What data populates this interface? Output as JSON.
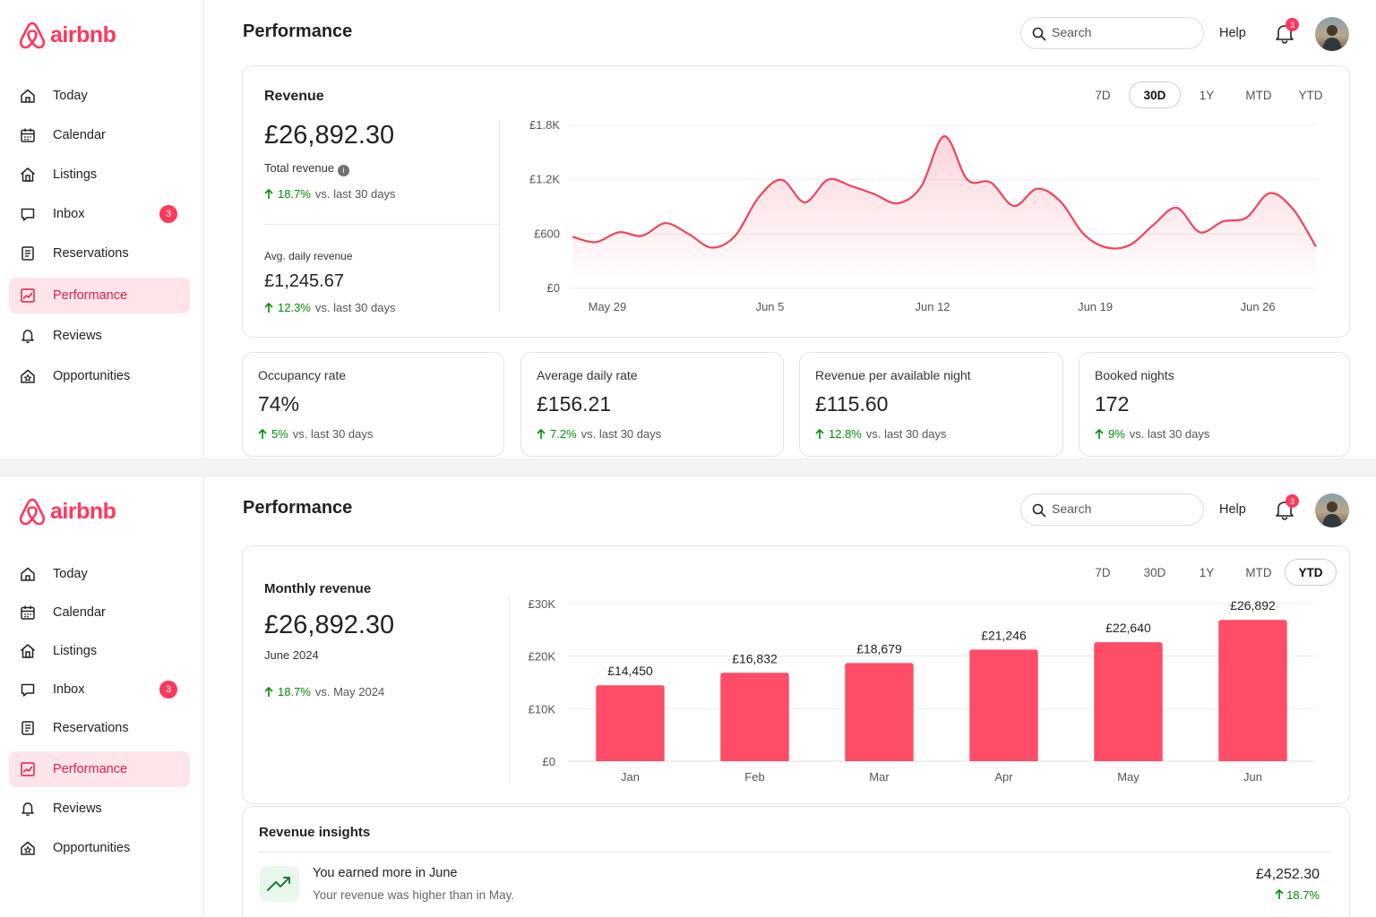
{
  "brand": {
    "name": "airbnb",
    "color": "#FF385C"
  },
  "sidebar": {
    "items": [
      {
        "label": "Today",
        "icon": "home-icon"
      },
      {
        "label": "Calendar",
        "icon": "calendar-icon"
      },
      {
        "label": "Listings",
        "icon": "listings-icon"
      },
      {
        "label": "Inbox",
        "icon": "inbox-icon",
        "badge": "3"
      },
      {
        "label": "Reservations",
        "icon": "reservations-icon"
      },
      {
        "label": "Performance",
        "icon": "performance-icon",
        "active": true
      },
      {
        "label": "Reviews",
        "icon": "reviews-icon"
      },
      {
        "label": "Opportunities",
        "icon": "opportunities-icon"
      }
    ]
  },
  "header": {
    "title": "Performance",
    "search_placeholder": "Search",
    "help_label": "Help",
    "notification_count": "3"
  },
  "range_tabs": [
    "7D",
    "30D",
    "1Y",
    "MTD",
    "YTD"
  ],
  "revenue_view": {
    "active_tab": "30D",
    "card_title": "Revenue",
    "total_value": "£26,892.30",
    "total_label": "Total revenue",
    "total_pct": "18.7%",
    "total_compare": "vs. last 30 days",
    "avg_label": "Avg. daily revenue",
    "avg_value": "£1,245.67",
    "avg_pct": "12.3%",
    "avg_compare": "vs. last 30 days",
    "metrics": [
      {
        "label": "Occupancy rate",
        "value": "74%",
        "pct": "5%",
        "compare": "vs. last 30 days"
      },
      {
        "label": "Average daily rate",
        "value": "£156.21",
        "pct": "7.2%",
        "compare": "vs. last 30 days"
      },
      {
        "label": "Revenue per available night",
        "value": "£115.60",
        "pct": "12.8%",
        "compare": "vs. last 30 days"
      },
      {
        "label": "Booked nights",
        "value": "172",
        "pct": "9%",
        "compare": "vs. last 30 days"
      }
    ]
  },
  "monthly_view": {
    "active_tab": "YTD",
    "card_title": "Monthly revenue",
    "value": "£26,892.30",
    "period": "June 2024",
    "pct": "18.7%",
    "compare": "vs. May 2024",
    "insights_title": "Revenue insights",
    "insight": {
      "title": "You earned more in June",
      "subtitle": "Your revenue was higher than in May.",
      "amount": "£4,252.30",
      "pct": "18.7%"
    }
  },
  "chart_data": [
    {
      "type": "area",
      "title": "",
      "xlabel": "",
      "ylabel": "",
      "ylim": [
        0,
        1800
      ],
      "yticks": [
        0,
        600,
        1200,
        1800
      ],
      "ytick_labels": [
        "£0",
        "£600",
        "£1.2K",
        "£1.8K"
      ],
      "xtick_labels": [
        "May 29",
        "Jun 5",
        "Jun 12",
        "Jun 19",
        "Jun 26"
      ],
      "xtick_positions": [
        1.5,
        8.5,
        15.5,
        22.5,
        29.5
      ],
      "grid": true,
      "line_color": "#F0435E",
      "x": [
        0,
        1,
        2,
        3,
        4,
        5,
        6,
        7,
        8,
        9,
        10,
        11,
        12,
        13,
        14,
        15,
        16,
        17,
        18,
        19,
        20,
        21,
        22,
        23,
        24,
        25,
        26,
        27,
        28,
        29,
        30,
        31,
        32
      ],
      "values": [
        570,
        510,
        620,
        580,
        720,
        600,
        450,
        580,
        1000,
        1200,
        950,
        1200,
        1130,
        1040,
        940,
        1120,
        1680,
        1200,
        1170,
        910,
        1100,
        960,
        600,
        450,
        480,
        700,
        890,
        620,
        740,
        780,
        1050,
        880,
        460
      ]
    },
    {
      "type": "bar",
      "title": "",
      "xlabel": "",
      "ylabel": "",
      "categories": [
        "Jan",
        "Feb",
        "Mar",
        "Apr",
        "May",
        "Jun"
      ],
      "values": [
        14450,
        16832,
        18679,
        21246,
        22640,
        26892
      ],
      "data_labels": [
        "£14,450",
        "£16,832",
        "£18,679",
        "£21,246",
        "£22,640",
        "£26,892"
      ],
      "ylim": [
        0,
        30000
      ],
      "yticks": [
        0,
        10000,
        20000,
        30000
      ],
      "ytick_labels": [
        "£0",
        "£10K",
        "£20K",
        "£30K"
      ],
      "grid": true,
      "bar_color": "#FF4D67"
    }
  ]
}
